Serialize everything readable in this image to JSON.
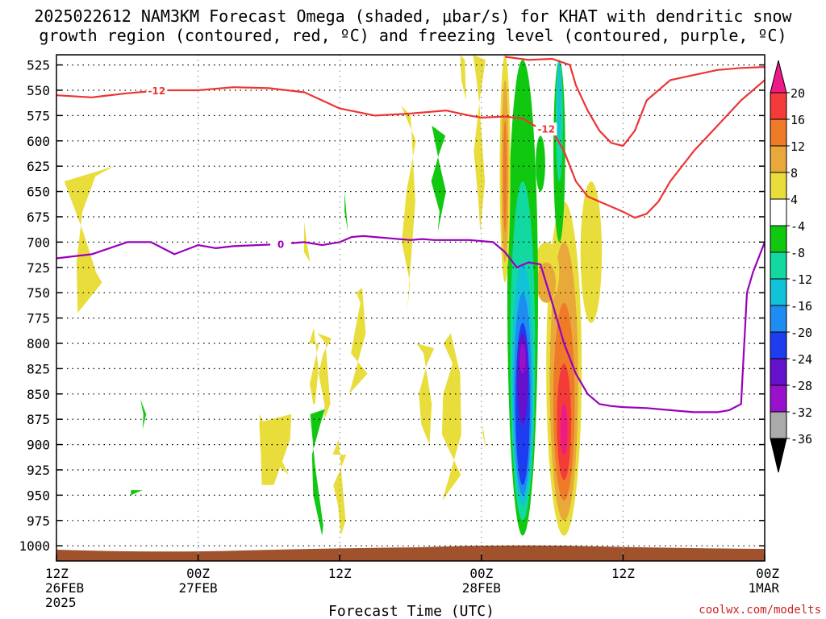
{
  "title": {
    "line1": "2025022612 NAM3KM Forecast Omega (shaded, μbar/s) for KHAT with dendritic snow",
    "line2": "growth region (contoured, red, ºC) and freezing level (contoured, purple, ºC)"
  },
  "credit": "coolwx.com/modelts",
  "colors": {
    "dgz_contour": "#ee3333",
    "freezing_contour": "#9900bb",
    "ground": "#a0522d",
    "grid": "#000000"
  },
  "chart_data": {
    "type": "heatmap",
    "title": "2025022612 NAM3KM Forecast Omega (shaded, μbar/s) for KHAT with dendritic snow growth region (contoured, red, ºC) and freezing level (contoured, purple, ºC)",
    "xlabel": "Forecast Time (UTC)",
    "ylabel": "",
    "x_unit": "forecast hour",
    "xlim": [
      0,
      60
    ],
    "x_ticks": [
      {
        "hour": 0,
        "lines": [
          "12Z",
          "26FEB",
          "2025"
        ]
      },
      {
        "hour": 12,
        "lines": [
          "00Z",
          "27FEB"
        ]
      },
      {
        "hour": 24,
        "lines": [
          "12Z"
        ]
      },
      {
        "hour": 36,
        "lines": [
          "00Z",
          "28FEB"
        ]
      },
      {
        "hour": 48,
        "lines": [
          "12Z"
        ]
      },
      {
        "hour": 60,
        "lines": [
          "00Z",
          "1MAR"
        ]
      }
    ],
    "y_unit": "hPa",
    "ylim": [
      1015,
      515
    ],
    "y_ticks": [
      525,
      550,
      575,
      600,
      625,
      650,
      675,
      700,
      725,
      750,
      775,
      800,
      825,
      850,
      875,
      900,
      925,
      950,
      975,
      1000
    ],
    "grid": true,
    "colorbar": {
      "unit": "μbar/s",
      "labels": [
        "20",
        "16",
        "12",
        "8",
        "4",
        "-4",
        "-8",
        "-12",
        "-16",
        "-20",
        "-24",
        "-28",
        "-32",
        "-36"
      ],
      "bins": [
        {
          "range": [
            20,
            99
          ],
          "color": "#ee1a88"
        },
        {
          "range": [
            16,
            20
          ],
          "color": "#f53a3a"
        },
        {
          "range": [
            12,
            16
          ],
          "color": "#ef7a28"
        },
        {
          "range": [
            8,
            12
          ],
          "color": "#e9a83a"
        },
        {
          "range": [
            4,
            8
          ],
          "color": "#e9dd3c"
        },
        {
          "range": [
            -4,
            4
          ],
          "color": "#ffffff"
        },
        {
          "range": [
            -8,
            -4
          ],
          "color": "#11c811"
        },
        {
          "range": [
            -12,
            -8
          ],
          "color": "#11d9a0"
        },
        {
          "range": [
            -16,
            -12
          ],
          "color": "#11c2d8"
        },
        {
          "range": [
            -20,
            -16
          ],
          "color": "#1e8cf0"
        },
        {
          "range": [
            -24,
            -20
          ],
          "color": "#1e3cf0"
        },
        {
          "range": [
            -28,
            -24
          ],
          "color": "#6611cc"
        },
        {
          "range": [
            -32,
            -28
          ],
          "color": "#9911cc"
        },
        {
          "range": [
            -36,
            -32
          ],
          "color": "#aaaaaa"
        },
        {
          "range": [
            -99,
            -36
          ],
          "color": "#000000"
        }
      ]
    },
    "omega_regions": [
      {
        "bin": 4,
        "hours": [
          1.8,
          1.7,
          2.2,
          3.3,
          4.9
        ],
        "pressures": [
          770,
          720,
          670,
          635,
          625
        ],
        "back": [
          640,
          690,
          730,
          740
        ]
      },
      {
        "bin": 6,
        "hours": [
          7.1,
          7.6,
          7.3
        ],
        "pressures": [
          855,
          870,
          885
        ],
        "back": [
          870
        ]
      },
      {
        "bin": 6,
        "hours": [
          6.3,
          7.3
        ],
        "pressures": [
          945,
          945
        ],
        "back": [
          950
        ]
      },
      {
        "bin": 4,
        "hours": [
          17.2,
          17.4,
          18.4,
          19.8,
          19.9
        ],
        "pressures": [
          870,
          940,
          940,
          895,
          870
        ],
        "back": [
          878,
          905,
          920,
          930
        ]
      },
      {
        "bin": 4,
        "hours": [
          21.4,
          21.8,
          22.2,
          21.9
        ],
        "pressures": [
          800,
          785,
          825,
          860
        ],
        "back": [
          860,
          840,
          820,
          800
        ]
      },
      {
        "bin": 4,
        "hours": [
          21.0,
          21.2,
          21.5
        ],
        "pressures": [
          680,
          700,
          720
        ],
        "back": [
          710
        ]
      },
      {
        "bin": 4,
        "hours": [
          22.1,
          22.8,
          23.2,
          22.7
        ],
        "pressures": [
          790,
          800,
          860,
          875
        ],
        "back": [
          860,
          830,
          810,
          795
        ]
      },
      {
        "bin": 6,
        "hours": [
          21.5,
          21.9,
          22.6,
          22.5
        ],
        "pressures": [
          870,
          920,
          980,
          990
        ],
        "back": [
          950,
          910,
          880,
          865
        ]
      },
      {
        "bin": 4,
        "hours": [
          23.4,
          23.9,
          24.5,
          24.1
        ],
        "pressures": [
          910,
          895,
          975,
          990
        ],
        "back": [
          960,
          940,
          925,
          910
        ]
      },
      {
        "bin": 6,
        "hours": [
          24.4,
          24.7
        ],
        "pressures": [
          650,
          690
        ],
        "back": [
          670
        ]
      },
      {
        "bin": 4,
        "hours": [
          25.4,
          25.9,
          26.2,
          24.8
        ],
        "pressures": [
          750,
          745,
          790,
          850
        ],
        "back": [
          830,
          810,
          790,
          760
        ]
      },
      {
        "bin": 4,
        "hours": [
          29.2,
          30.0,
          30.4,
          29.7
        ],
        "pressures": [
          565,
          575,
          660,
          770
        ],
        "back": [
          740,
          700,
          650,
          600
        ]
      },
      {
        "bin": 4,
        "hours": [
          30.5,
          31.1,
          31.8,
          31.6
        ],
        "pressures": [
          800,
          810,
          860,
          900
        ],
        "back": [
          880,
          850,
          820,
          805
        ]
      },
      {
        "bin": 4,
        "hours": [
          32.8,
          33.4,
          34.2,
          34.3,
          32.7
        ],
        "pressures": [
          800,
          790,
          830,
          890,
          955
        ],
        "back": [
          930,
          890,
          850,
          820
        ]
      },
      {
        "bin": 6,
        "hours": [
          31.8,
          32.4,
          33.0,
          32.3
        ],
        "pressures": [
          585,
          620,
          650,
          690
        ],
        "back": [
          670,
          640,
          615,
          595
        ]
      },
      {
        "bin": 4,
        "hours": [
          34.2,
          34.6,
          34.7
        ],
        "pressures": [
          515,
          520,
          560
        ],
        "back": [
          540
        ]
      },
      {
        "bin": 4,
        "hours": [
          35.3,
          35.8,
          36.3,
          35.9
        ],
        "pressures": [
          515,
          560,
          640,
          690
        ],
        "back": [
          660,
          610,
          560,
          520
        ]
      },
      {
        "bin": 4,
        "hours": [
          36.1,
          36.4
        ],
        "pressures": [
          880,
          905
        ],
        "back": [
          890
        ]
      }
    ],
    "dgz_contours": [
      {
        "label": "-12",
        "label_hour": 8.5,
        "hours": [
          0,
          3,
          6,
          9,
          12,
          15,
          18,
          21,
          24,
          27,
          30,
          33,
          35,
          36,
          38,
          39.5
        ],
        "pressures": [
          555,
          557,
          553,
          550,
          550,
          547,
          548,
          552,
          568,
          575,
          573,
          570,
          575,
          577,
          576,
          578
        ]
      },
      {
        "label": "-12",
        "label_hour": 41.5,
        "hours": [
          39.5,
          40.5,
          42,
          43,
          44,
          45,
          46,
          47,
          48,
          49,
          50,
          51,
          52,
          54,
          56,
          58,
          60
        ],
        "pressures": [
          578,
          585,
          590,
          610,
          640,
          655,
          660,
          665,
          670,
          676,
          672,
          660,
          640,
          610,
          585,
          560,
          540
        ]
      },
      {
        "label": "",
        "label_hour": 0,
        "hours": [
          38,
          40,
          42,
          43.5,
          44,
          45,
          46,
          47,
          48,
          49,
          50,
          52,
          54,
          56,
          58,
          60
        ],
        "pressures": [
          517,
          520,
          519,
          525,
          545,
          570,
          590,
          602,
          605,
          590,
          560,
          540,
          535,
          530,
          528,
          527
        ]
      }
    ],
    "freezing_contours": [
      {
        "label": "0",
        "label_hour": 19,
        "hours": [
          0,
          3,
          4.5,
          6,
          8,
          10,
          12,
          13.5,
          15,
          17,
          19,
          21,
          22.5,
          24,
          25,
          26,
          27,
          28,
          29,
          30,
          31,
          32,
          33,
          34,
          35,
          37,
          38,
          39,
          40,
          41,
          42,
          43,
          44,
          45,
          46,
          47,
          48,
          50,
          52,
          54,
          56,
          57,
          58,
          58.5,
          59,
          60
        ],
        "pressures": [
          716,
          712,
          706,
          700,
          700,
          712,
          703,
          706,
          704,
          703,
          702,
          700,
          703,
          700,
          695,
          694,
          695,
          696,
          697,
          698,
          697,
          698,
          698,
          698,
          698,
          700,
          710,
          725,
          720,
          722,
          760,
          800,
          830,
          850,
          860,
          862,
          863,
          864,
          866,
          868,
          868,
          866,
          860,
          750,
          730,
          700
        ]
      }
    ]
  }
}
